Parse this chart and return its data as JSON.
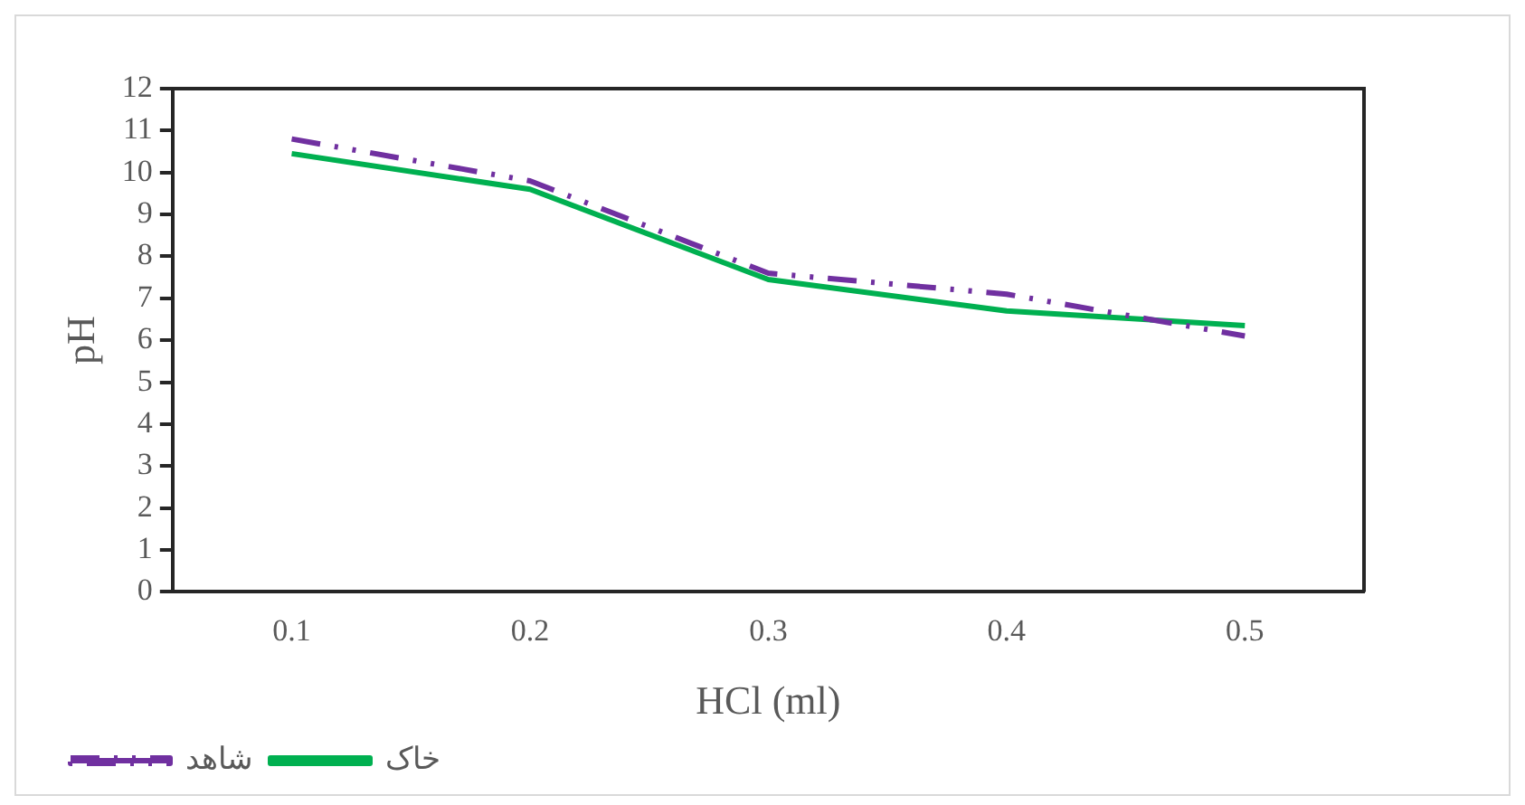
{
  "chart_data": {
    "type": "line",
    "xlabel": "HCl (ml)",
    "ylabel": "pH",
    "categories": [
      "0.1",
      "0.2",
      "0.3",
      "0.4",
      "0.5"
    ],
    "series": [
      {
        "name": "شاهد",
        "color": "#7030a0",
        "values": [
          10.8,
          9.8,
          7.6,
          7.1,
          6.1
        ],
        "line_style": "dashed"
      },
      {
        "name": "خاک",
        "color": "#00b050",
        "values": [
          10.45,
          9.6,
          7.45,
          6.7,
          6.35
        ],
        "line_style": "solid"
      }
    ],
    "ylim": [
      0,
      12
    ],
    "yticks": [
      0,
      1,
      2,
      3,
      4,
      5,
      6,
      7,
      8,
      9,
      10,
      11,
      12
    ],
    "grid": false,
    "legend": "bottom left",
    "marker": "none"
  }
}
